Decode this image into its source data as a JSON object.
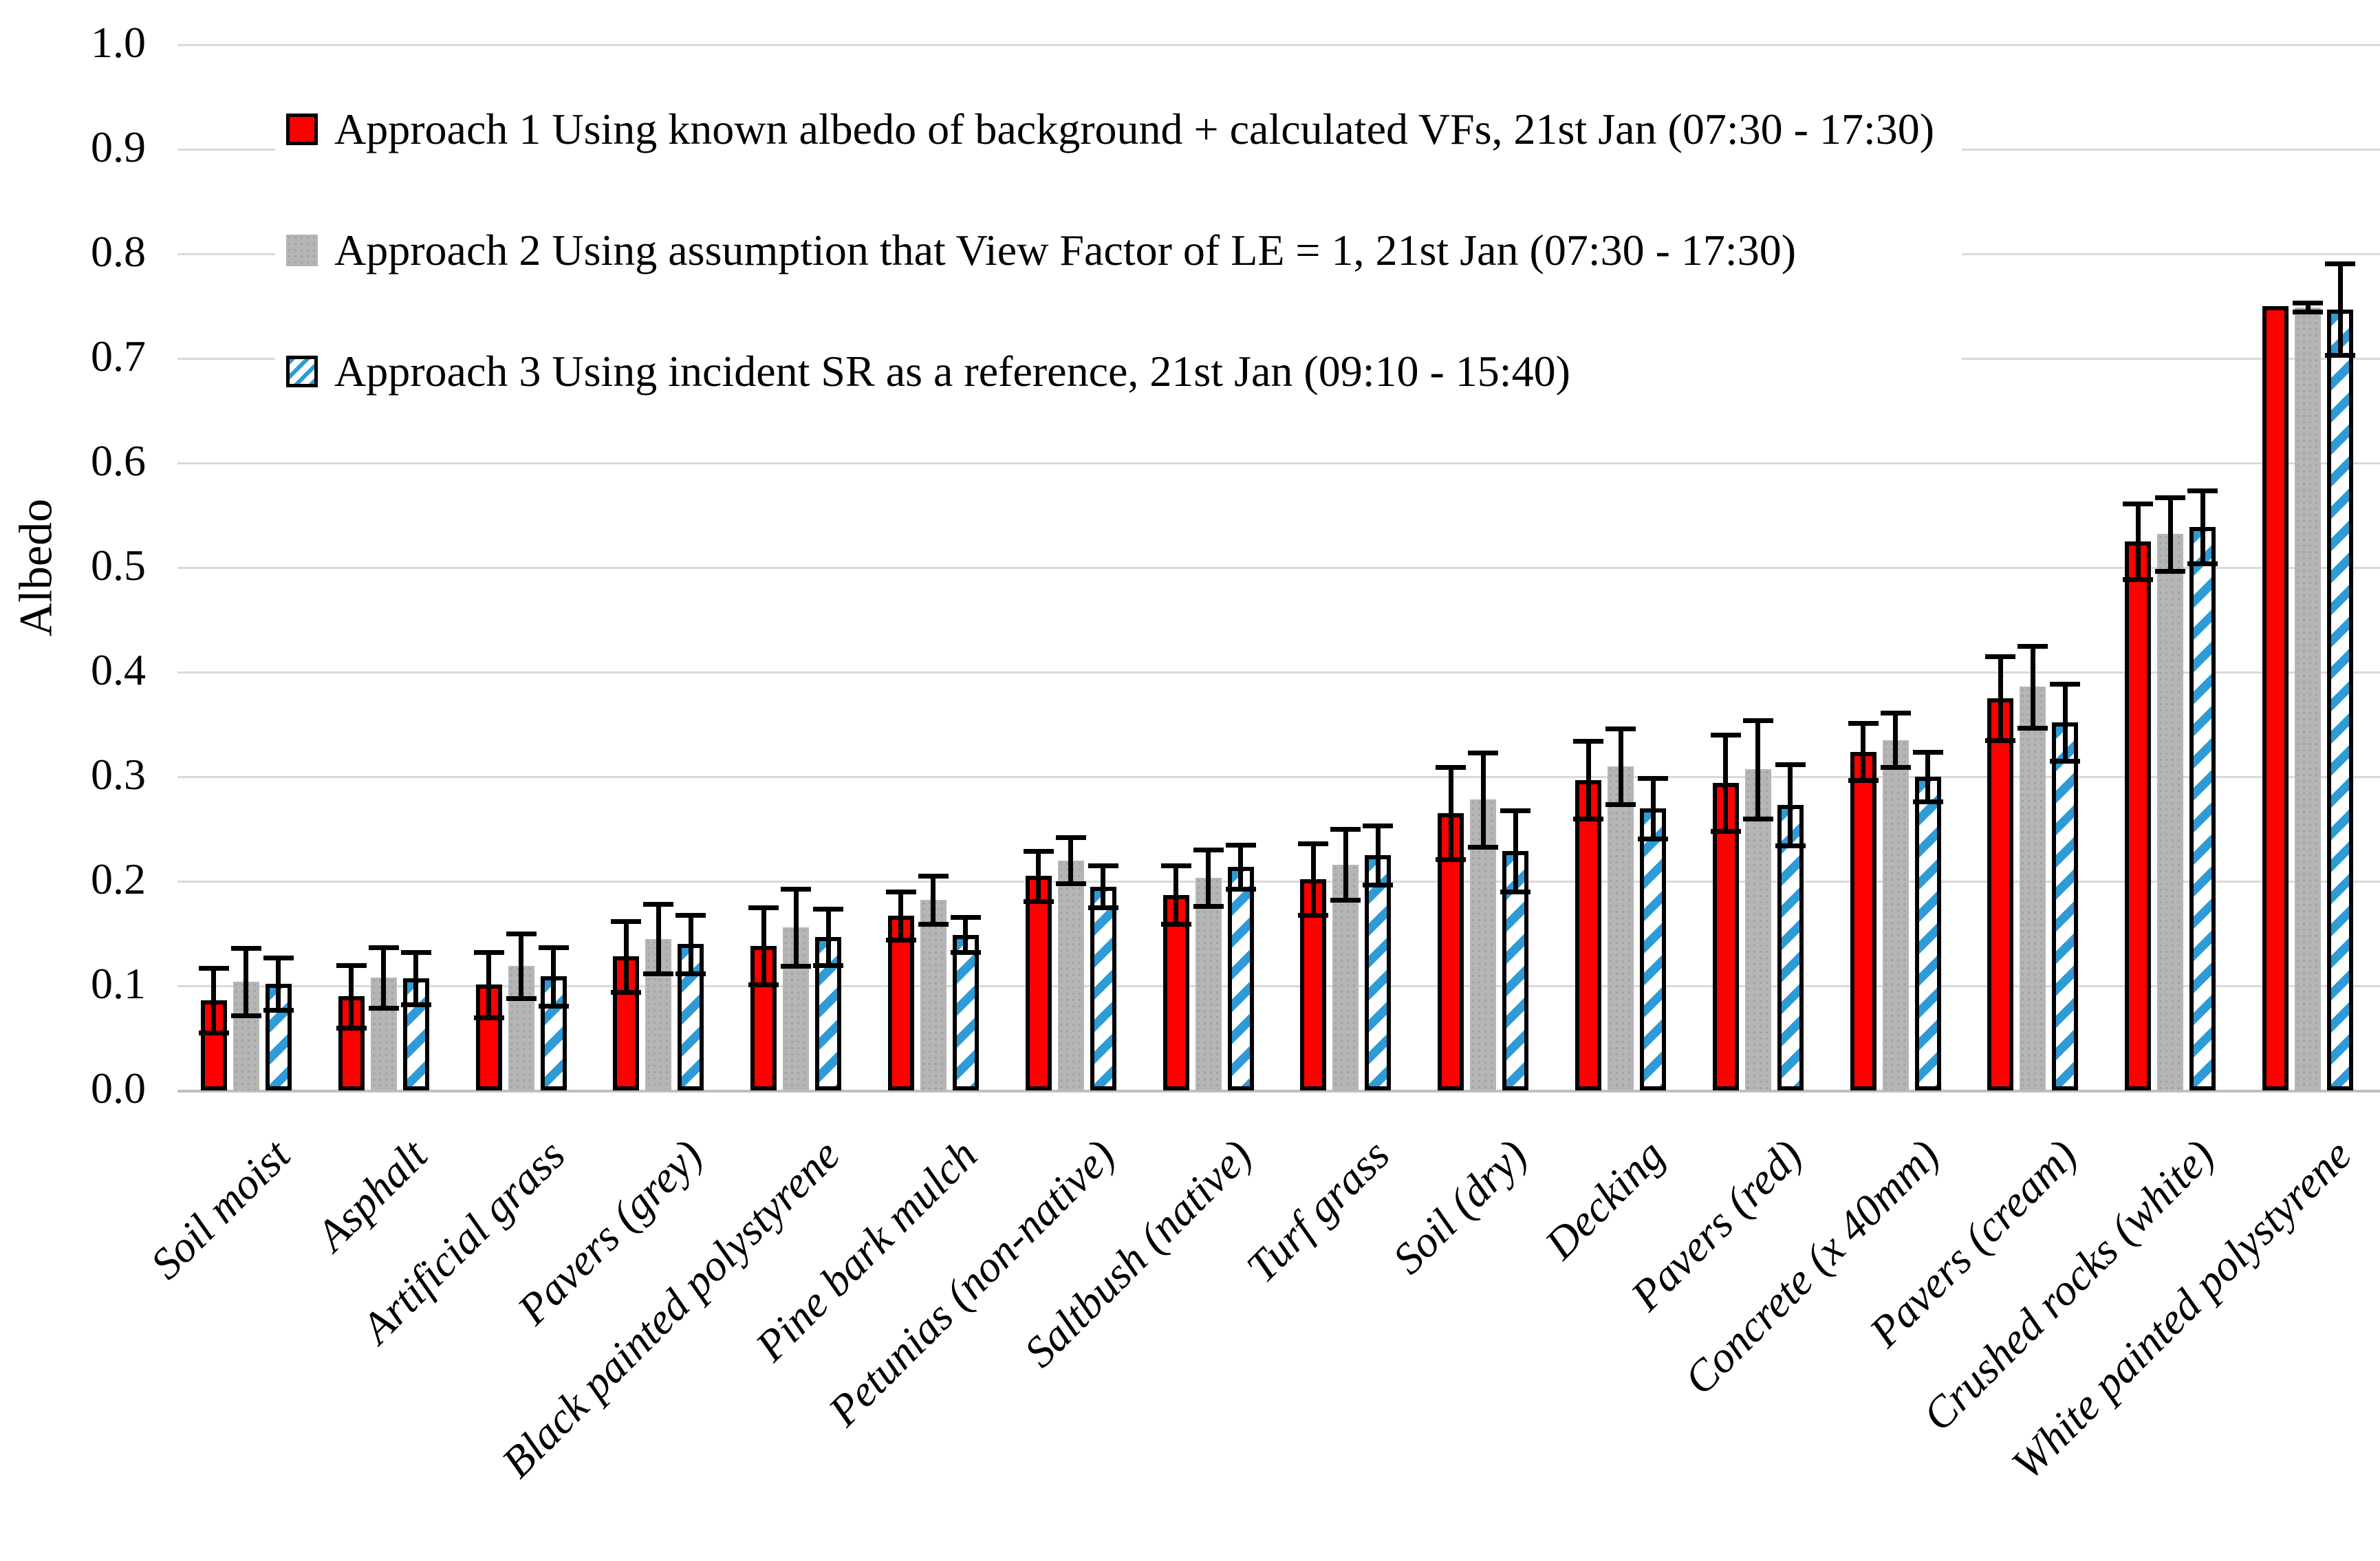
{
  "chart_data": {
    "type": "bar",
    "title": "",
    "xlabel": "",
    "ylabel": "Albedo",
    "ylim": [
      0.0,
      1.0
    ],
    "ytick_step": 0.1,
    "grid": true,
    "legend_position": "top-left-inside",
    "categories": [
      "Soil moist",
      "Asphalt",
      "Artificial grass",
      "Pavers (grey)",
      "Black painted polystyrene",
      "Pine bark mulch",
      "Petunias (non-native)",
      "Saltbush (native)",
      "Turf grass",
      "Soil (dry)",
      "Decking",
      "Pavers (red)",
      "Concrete (x 40mm)",
      "Pavers (cream)",
      "Crushed rocks (white)",
      "White painted polystyrene"
    ],
    "series": [
      {
        "name": "Approach 1 Using known albedo of background + calculated VFs, 21st Jan (07:30 - 17:30)",
        "color": "#fe0000",
        "pattern": "solid-red-outlined",
        "values": [
          0.086,
          0.09,
          0.101,
          0.128,
          0.138,
          0.167,
          0.205,
          0.187,
          0.202,
          0.265,
          0.297,
          0.294,
          0.324,
          0.375,
          0.525,
          0.75
        ],
        "errors": [
          0.031,
          0.03,
          0.031,
          0.034,
          0.037,
          0.023,
          0.024,
          0.028,
          0.034,
          0.044,
          0.037,
          0.046,
          0.027,
          0.04,
          0.036,
          0.0
        ]
      },
      {
        "name": "Approach 2 Using assumption that View Factor of LE = 1, 21st Jan (07:30 - 17:30)",
        "color": "#b5b5b5",
        "pattern": "solid-grey-speckled",
        "values": [
          0.104,
          0.108,
          0.119,
          0.145,
          0.156,
          0.182,
          0.22,
          0.203,
          0.216,
          0.278,
          0.31,
          0.307,
          0.335,
          0.386,
          0.532,
          0.749
        ],
        "errors": [
          0.032,
          0.029,
          0.031,
          0.033,
          0.037,
          0.023,
          0.022,
          0.027,
          0.034,
          0.045,
          0.036,
          0.047,
          0.026,
          0.039,
          0.035,
          0.004
        ]
      },
      {
        "name": "Approach 3 Using incident SR as a reference, 21st Jan (09:10 - 15:40)",
        "color": "#2e9bd6",
        "pattern": "blue-diagonal-hatch-outlined",
        "values": [
          0.102,
          0.107,
          0.109,
          0.14,
          0.147,
          0.149,
          0.195,
          0.214,
          0.225,
          0.229,
          0.27,
          0.273,
          0.3,
          0.352,
          0.539,
          0.747
        ],
        "errors": [
          0.025,
          0.025,
          0.028,
          0.028,
          0.027,
          0.017,
          0.02,
          0.021,
          0.028,
          0.039,
          0.029,
          0.039,
          0.024,
          0.037,
          0.035,
          0.044
        ]
      }
    ],
    "colors": {
      "gridline": "#d9d9d9",
      "axis_line": "#bfbfbf",
      "error_bar": "#000000",
      "text": "#000000",
      "background": "#ffffff"
    }
  }
}
